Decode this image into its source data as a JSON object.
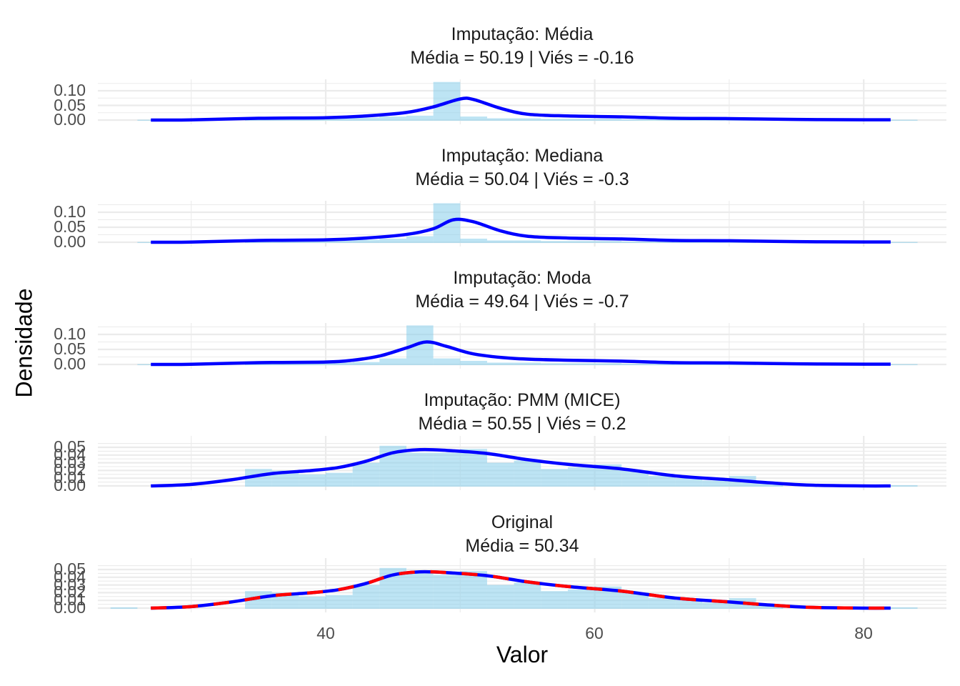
{
  "chart_data": {
    "type": "histogram+density (faceted)",
    "xlabel": "Valor",
    "ylabel": "Densidade",
    "x_ticks": [
      40,
      60,
      80
    ],
    "xlim": [
      23,
      86
    ],
    "bin_width": 2,
    "colors": {
      "histogram_fill": "#87CEEB",
      "density_line": "#0000FF",
      "original_dashed_line": "#FF0000",
      "grid": "#EBEBEB"
    },
    "panels": [
      {
        "title": "Imputação: Média",
        "subtitle": "Média = 50.19 | Viés = -0.16",
        "y_ticks": [
          "0.00",
          "0.05",
          "0.10"
        ],
        "ylim": [
          0,
          0.135
        ],
        "bins": [
          [
            27,
            0.001
          ],
          [
            35,
            0.004
          ],
          [
            37,
            0.006
          ],
          [
            39,
            0.006
          ],
          [
            41,
            0.006
          ],
          [
            43,
            0.008
          ],
          [
            45,
            0.012
          ],
          [
            47,
            0.015
          ],
          [
            49,
            0.13
          ],
          [
            51,
            0.012
          ],
          [
            53,
            0.006
          ],
          [
            55,
            0.006
          ],
          [
            57,
            0.004
          ],
          [
            59,
            0.004
          ],
          [
            61,
            0.004
          ],
          [
            63,
            0.002
          ],
          [
            65,
            0.002
          ],
          [
            67,
            0.002
          ],
          [
            69,
            0.003
          ],
          [
            71,
            0.002
          ],
          [
            83,
            0.001
          ]
        ],
        "density": [
          [
            27,
            0.0
          ],
          [
            30,
            0.0005
          ],
          [
            35,
            0.006
          ],
          [
            40,
            0.008
          ],
          [
            43,
            0.014
          ],
          [
            46,
            0.026
          ],
          [
            48,
            0.045
          ],
          [
            50,
            0.072
          ],
          [
            51,
            0.07
          ],
          [
            53,
            0.04
          ],
          [
            55,
            0.02
          ],
          [
            58,
            0.014
          ],
          [
            62,
            0.011
          ],
          [
            66,
            0.006
          ],
          [
            70,
            0.005
          ],
          [
            75,
            0.002
          ],
          [
            80,
            0.001
          ],
          [
            82,
            0.001
          ]
        ],
        "reference_line": false
      },
      {
        "title": "Imputação: Mediana",
        "subtitle": "Média = 50.04 | Viés = -0.3",
        "y_ticks": [
          "0.00",
          "0.05",
          "0.10"
        ],
        "ylim": [
          0,
          0.135
        ],
        "bins": [
          [
            27,
            0.001
          ],
          [
            35,
            0.004
          ],
          [
            37,
            0.006
          ],
          [
            39,
            0.006
          ],
          [
            41,
            0.006
          ],
          [
            43,
            0.008
          ],
          [
            45,
            0.012
          ],
          [
            47,
            0.02
          ],
          [
            49,
            0.13
          ],
          [
            51,
            0.012
          ],
          [
            53,
            0.006
          ],
          [
            55,
            0.006
          ],
          [
            57,
            0.004
          ],
          [
            59,
            0.004
          ],
          [
            61,
            0.004
          ],
          [
            63,
            0.002
          ],
          [
            65,
            0.002
          ],
          [
            67,
            0.002
          ],
          [
            69,
            0.003
          ],
          [
            71,
            0.002
          ],
          [
            83,
            0.001
          ]
        ],
        "density": [
          [
            27,
            0.0
          ],
          [
            30,
            0.0005
          ],
          [
            35,
            0.006
          ],
          [
            40,
            0.008
          ],
          [
            43,
            0.014
          ],
          [
            46,
            0.026
          ],
          [
            48,
            0.045
          ],
          [
            49.5,
            0.075
          ],
          [
            51,
            0.068
          ],
          [
            53,
            0.038
          ],
          [
            55,
            0.02
          ],
          [
            58,
            0.014
          ],
          [
            62,
            0.011
          ],
          [
            66,
            0.006
          ],
          [
            70,
            0.005
          ],
          [
            75,
            0.002
          ],
          [
            80,
            0.001
          ],
          [
            82,
            0.001
          ]
        ],
        "reference_line": false
      },
      {
        "title": "Imputação: Moda",
        "subtitle": "Média = 49.64 | Viés = -0.7",
        "y_ticks": [
          "0.00",
          "0.05",
          "0.10"
        ],
        "ylim": [
          0,
          0.135
        ],
        "bins": [
          [
            27,
            0.001
          ],
          [
            35,
            0.004
          ],
          [
            37,
            0.006
          ],
          [
            39,
            0.006
          ],
          [
            41,
            0.006
          ],
          [
            43,
            0.008
          ],
          [
            45,
            0.02
          ],
          [
            47,
            0.13
          ],
          [
            49,
            0.02
          ],
          [
            51,
            0.012
          ],
          [
            53,
            0.006
          ],
          [
            55,
            0.006
          ],
          [
            57,
            0.004
          ],
          [
            59,
            0.004
          ],
          [
            61,
            0.004
          ],
          [
            63,
            0.002
          ],
          [
            65,
            0.002
          ],
          [
            67,
            0.002
          ],
          [
            69,
            0.003
          ],
          [
            71,
            0.002
          ],
          [
            83,
            0.001
          ]
        ],
        "density": [
          [
            27,
            0.0
          ],
          [
            30,
            0.0005
          ],
          [
            35,
            0.006
          ],
          [
            40,
            0.008
          ],
          [
            42,
            0.014
          ],
          [
            44,
            0.028
          ],
          [
            46,
            0.055
          ],
          [
            47.5,
            0.075
          ],
          [
            49,
            0.06
          ],
          [
            51,
            0.035
          ],
          [
            54,
            0.02
          ],
          [
            58,
            0.014
          ],
          [
            62,
            0.011
          ],
          [
            66,
            0.006
          ],
          [
            70,
            0.005
          ],
          [
            75,
            0.002
          ],
          [
            80,
            0.001
          ],
          [
            82,
            0.001
          ]
        ],
        "reference_line": false
      },
      {
        "title": "Imputação: PMM (MICE)",
        "subtitle": "Média = 50.55 | Viés = 0.2",
        "y_ticks": [
          "0.00",
          "0.01",
          "0.02",
          "0.03",
          "0.04",
          "0.05"
        ],
        "ylim": [
          0,
          0.052
        ],
        "bins": [
          [
            27,
            0.0
          ],
          [
            35,
            0.022
          ],
          [
            37,
            0.02
          ],
          [
            39,
            0.015
          ],
          [
            41,
            0.017
          ],
          [
            43,
            0.03
          ],
          [
            45,
            0.052
          ],
          [
            47,
            0.043
          ],
          [
            49,
            0.043
          ],
          [
            51,
            0.048
          ],
          [
            53,
            0.03
          ],
          [
            55,
            0.033
          ],
          [
            57,
            0.022
          ],
          [
            59,
            0.024
          ],
          [
            61,
            0.028
          ],
          [
            63,
            0.02
          ],
          [
            65,
            0.013
          ],
          [
            67,
            0.01
          ],
          [
            69,
            0.007
          ],
          [
            71,
            0.013
          ],
          [
            73,
            0.004
          ],
          [
            83,
            0.001
          ]
        ],
        "density": [
          [
            27,
            0.0
          ],
          [
            30,
            0.002
          ],
          [
            33,
            0.008
          ],
          [
            36,
            0.016
          ],
          [
            39,
            0.02
          ],
          [
            41,
            0.024
          ],
          [
            43,
            0.032
          ],
          [
            45,
            0.043
          ],
          [
            47,
            0.047
          ],
          [
            49,
            0.046
          ],
          [
            52,
            0.042
          ],
          [
            55,
            0.034
          ],
          [
            58,
            0.028
          ],
          [
            62,
            0.022
          ],
          [
            66,
            0.013
          ],
          [
            70,
            0.008
          ],
          [
            73,
            0.004
          ],
          [
            76,
            0.001
          ],
          [
            80,
            0.0
          ],
          [
            82,
            0.0
          ]
        ],
        "reference_line": false
      },
      {
        "title": "Original",
        "subtitle": "Média = 50.34",
        "y_ticks": [
          "0.00",
          "0.01",
          "0.02",
          "0.03",
          "0.04",
          "0.05"
        ],
        "ylim": [
          0,
          0.052
        ],
        "bins": [
          [
            25,
            0.001
          ],
          [
            27,
            0.0
          ],
          [
            35,
            0.022
          ],
          [
            37,
            0.02
          ],
          [
            39,
            0.015
          ],
          [
            41,
            0.017
          ],
          [
            43,
            0.03
          ],
          [
            45,
            0.052
          ],
          [
            47,
            0.045
          ],
          [
            49,
            0.043
          ],
          [
            51,
            0.048
          ],
          [
            53,
            0.03
          ],
          [
            55,
            0.033
          ],
          [
            57,
            0.022
          ],
          [
            59,
            0.024
          ],
          [
            61,
            0.028
          ],
          [
            63,
            0.02
          ],
          [
            65,
            0.013
          ],
          [
            67,
            0.01
          ],
          [
            69,
            0.007
          ],
          [
            71,
            0.013
          ],
          [
            73,
            0.004
          ],
          [
            83,
            0.001
          ]
        ],
        "density": [
          [
            27,
            0.0
          ],
          [
            30,
            0.002
          ],
          [
            33,
            0.008
          ],
          [
            36,
            0.016
          ],
          [
            39,
            0.02
          ],
          [
            41,
            0.024
          ],
          [
            43,
            0.032
          ],
          [
            45,
            0.043
          ],
          [
            47,
            0.047
          ],
          [
            49,
            0.046
          ],
          [
            52,
            0.042
          ],
          [
            55,
            0.034
          ],
          [
            58,
            0.028
          ],
          [
            62,
            0.022
          ],
          [
            66,
            0.013
          ],
          [
            70,
            0.008
          ],
          [
            73,
            0.004
          ],
          [
            76,
            0.001
          ],
          [
            80,
            0.0
          ],
          [
            82,
            0.0
          ]
        ],
        "reference_line": true
      }
    ]
  }
}
